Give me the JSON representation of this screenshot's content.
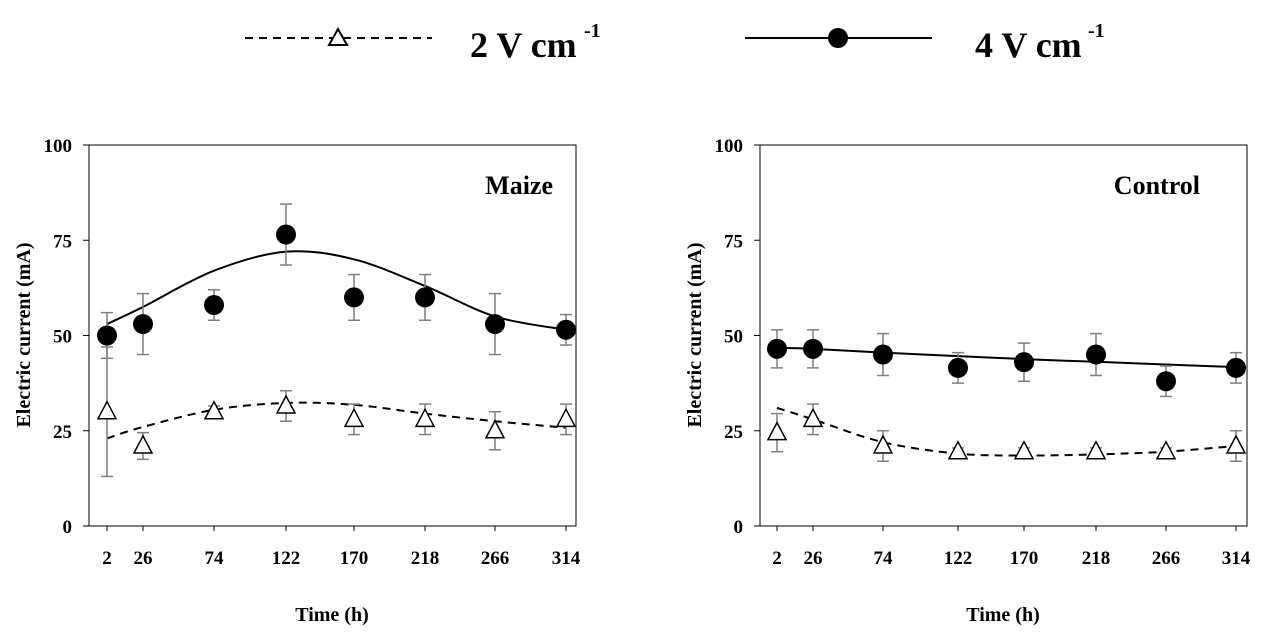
{
  "legend": [
    {
      "series": "2 V cm-1",
      "text": "2 V cm",
      "sup": "-1",
      "style": "dashed",
      "marker": "open-triangle"
    },
    {
      "series": "4 V cm-1",
      "text": "4 V cm",
      "sup": "-1",
      "style": "solid",
      "marker": "filled-circle"
    }
  ],
  "colors": {
    "line": "#000000",
    "error_bar": "#7f7f7f",
    "background": "#ffffff"
  },
  "chart_data": [
    {
      "type": "line",
      "title": "Maize",
      "xlabel": "Time (h)",
      "ylabel": "Electric current (mA)",
      "x": [
        2,
        26,
        74,
        122,
        170,
        218,
        266,
        314
      ],
      "ylim": [
        0,
        100
      ],
      "yticks": [
        0,
        25,
        50,
        75,
        100
      ],
      "grid": false,
      "series": [
        {
          "name": "2 V cm-1",
          "values": [
            30,
            21,
            30,
            31.5,
            28,
            28,
            25,
            28
          ],
          "errors": [
            17,
            3.5,
            1.5,
            4,
            4,
            4,
            5,
            4
          ],
          "trend": [
            23,
            26,
            30.5,
            32.3,
            31.8,
            29.5,
            27.5,
            25.8
          ]
        },
        {
          "name": "4 V cm-1",
          "values": [
            50,
            53,
            58,
            76.5,
            60,
            60,
            53,
            51.5
          ],
          "errors": [
            6,
            8,
            4,
            8,
            6,
            6,
            8,
            4
          ],
          "trend": [
            53,
            57.5,
            67,
            72,
            70,
            63,
            55,
            51.5
          ]
        }
      ]
    },
    {
      "type": "line",
      "title": "Control",
      "xlabel": "Time (h)",
      "ylabel": "Electric current (mA)",
      "x": [
        2,
        26,
        74,
        122,
        170,
        218,
        266,
        314
      ],
      "ylim": [
        0,
        100
      ],
      "yticks": [
        0,
        25,
        50,
        75,
        100
      ],
      "grid": false,
      "series": [
        {
          "name": "2 V cm-1",
          "values": [
            24.5,
            28,
            21,
            19.5,
            19.5,
            19.5,
            19.5,
            21
          ],
          "errors": [
            5,
            4,
            4,
            1,
            1,
            1,
            1,
            4
          ],
          "trend": [
            31,
            28,
            22,
            19,
            18.5,
            18.8,
            19.5,
            21
          ]
        },
        {
          "name": "4 V cm-1",
          "values": [
            46.5,
            46.5,
            45,
            41.5,
            43,
            45,
            38,
            41.5
          ],
          "errors": [
            5,
            5,
            5.5,
            4,
            5,
            5.5,
            4,
            4
          ],
          "trend": [
            46.8,
            46.5,
            45.5,
            44.6,
            43.8,
            43.1,
            42.4,
            41.7
          ]
        }
      ]
    }
  ]
}
